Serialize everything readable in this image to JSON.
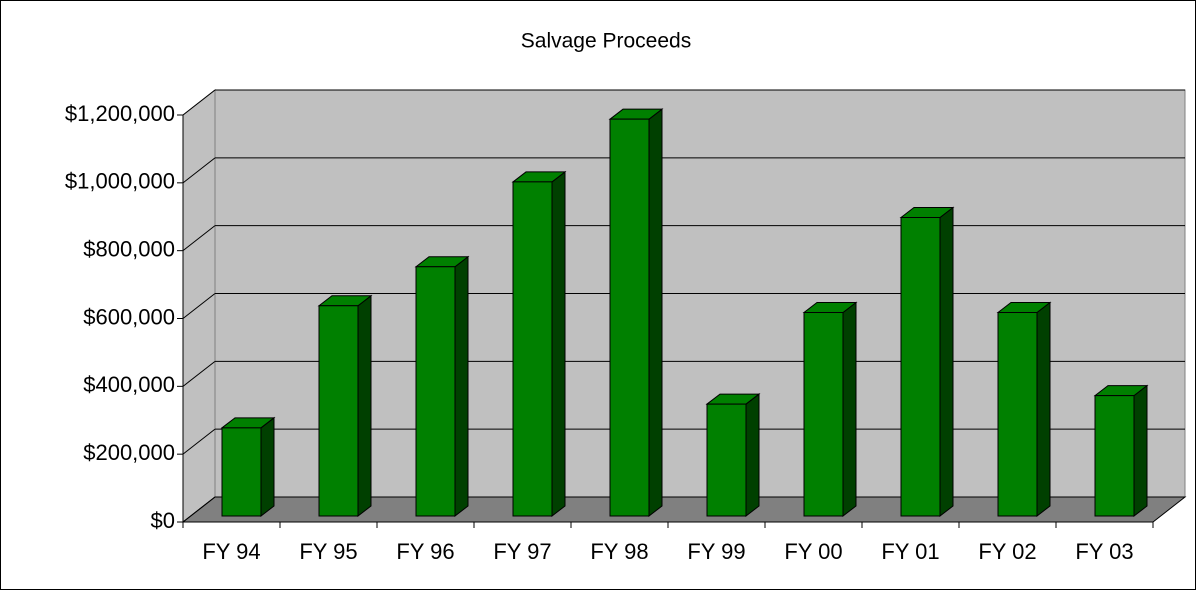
{
  "chart_data": {
    "type": "bar",
    "title": "Salvage Proceeds",
    "categories": [
      "FY 94",
      "FY 95",
      "FY 96",
      "FY 97",
      "FY 98",
      "FY 99",
      "FY 00",
      "FY 01",
      "FY 02",
      "FY 03"
    ],
    "values": [
      260000,
      620000,
      735000,
      985000,
      1170000,
      330000,
      600000,
      880000,
      600000,
      355000
    ],
    "color": "#008000",
    "ylim": [
      0,
      1200000
    ],
    "yticks": [
      {
        "value": 0,
        "label": "$0"
      },
      {
        "value": 200000,
        "label": "$200,000"
      },
      {
        "value": 400000,
        "label": "$400,000"
      },
      {
        "value": 600000,
        "label": "$600,000"
      },
      {
        "value": 800000,
        "label": "$800,000"
      },
      {
        "value": 1000000,
        "label": "$1,000,000"
      },
      {
        "value": 1200000,
        "label": "$1,200,000"
      }
    ],
    "grid": true
  }
}
